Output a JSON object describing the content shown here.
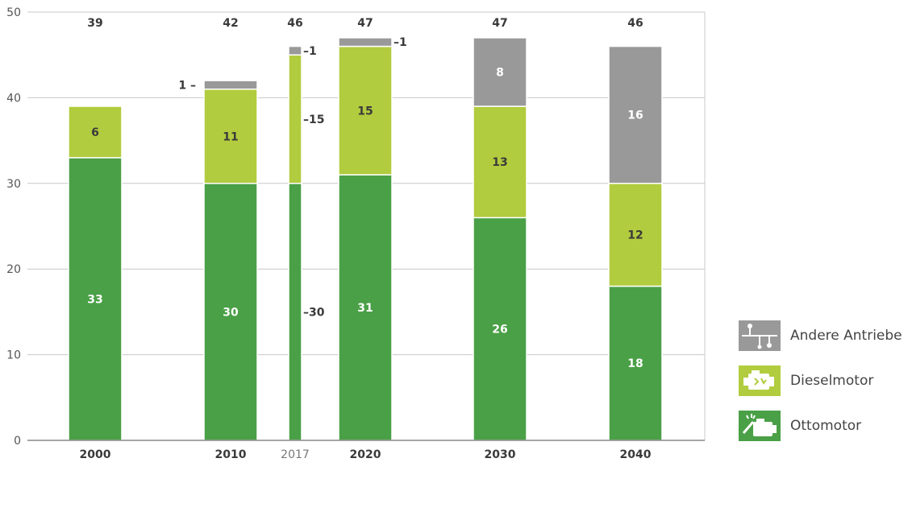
{
  "chart_data": {
    "type": "bar",
    "stacked": true,
    "categories": [
      "2000",
      "2010",
      "2017",
      "2020",
      "2030",
      "2040"
    ],
    "totals": [
      "39",
      "42",
      "46",
      "47",
      "47",
      "46"
    ],
    "series": [
      {
        "name": "Ottomotor",
        "color": "#4aa046",
        "text_color": "#ffffff",
        "values": [
          33,
          30,
          30,
          31,
          26,
          18
        ]
      },
      {
        "name": "Dieselmotor",
        "color": "#b1cc3e",
        "text_color": "#3a3a3a",
        "values": [
          6,
          11,
          15,
          15,
          13,
          12
        ]
      },
      {
        "name": "Andere Antriebe",
        "color": "#999999",
        "text_color": "#ffffff",
        "values": [
          0,
          1,
          1,
          1,
          8,
          16
        ]
      }
    ],
    "ylim": [
      0,
      50
    ],
    "yticks": [
      "0",
      "10",
      "20",
      "30",
      "40",
      "50"
    ],
    "legend_position": "right",
    "grid": true
  },
  "legend": {
    "other_label": "Andere Antriebe",
    "diesel_label": "Dieselmotor",
    "otto_label": "Ottomotor",
    "other_icon": "circuit-icon",
    "diesel_icon": "diesel-engine-icon",
    "otto_icon": "petrol-engine-icon"
  }
}
